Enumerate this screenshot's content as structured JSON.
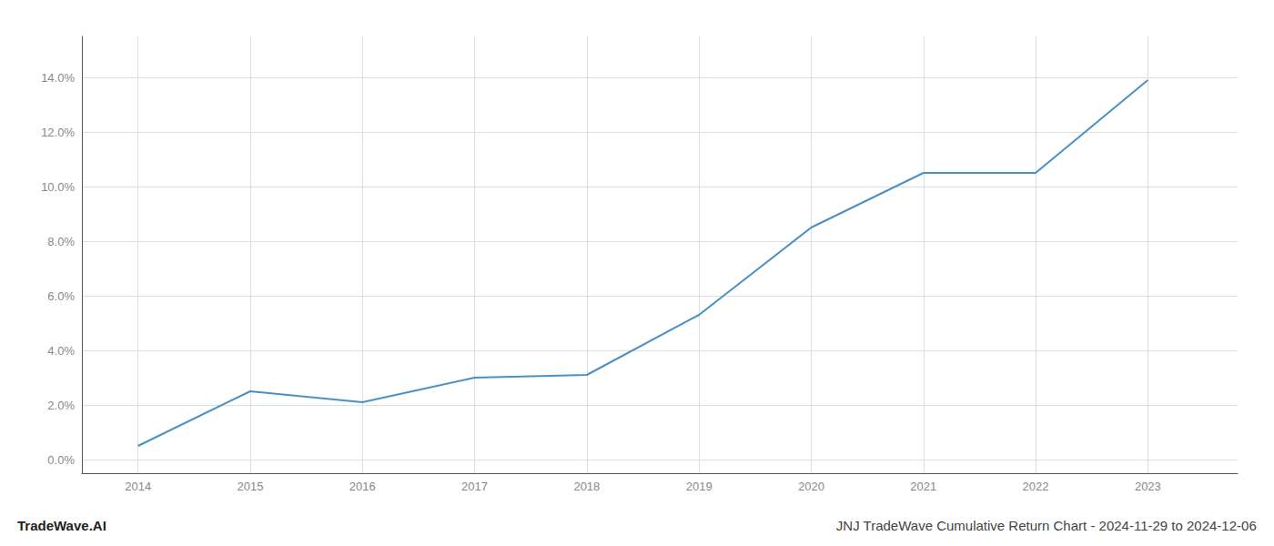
{
  "chart_data": {
    "type": "line",
    "title": "JNJ TradeWave Cumulative Return Chart - 2024-11-29 to 2024-12-06",
    "annotations": [
      "TradeWave.AI"
    ],
    "x": [
      2014,
      2015,
      2016,
      2017,
      2018,
      2019,
      2020,
      2021,
      2022,
      2023
    ],
    "values": [
      0.005,
      0.025,
      0.021,
      0.03,
      0.031,
      0.053,
      0.085,
      0.105,
      0.105,
      0.139
    ],
    "color": "#4a90c4",
    "xlim": [
      2013.5,
      2023.8
    ],
    "ylim": [
      -0.005,
      0.155
    ],
    "xticks": [
      2014,
      2015,
      2016,
      2017,
      2018,
      2019,
      2020,
      2021,
      2022,
      2023
    ],
    "yticks": [
      {
        "value": 0.0,
        "label": "0.0%"
      },
      {
        "value": 0.02,
        "label": "2.0%"
      },
      {
        "value": 0.04,
        "label": "4.0%"
      },
      {
        "value": 0.06,
        "label": "6.0%"
      },
      {
        "value": 0.08,
        "label": "8.0%"
      },
      {
        "value": 0.1,
        "label": "10.0%"
      },
      {
        "value": 0.12,
        "label": "12.0%"
      },
      {
        "value": 0.14,
        "label": "14.0%"
      }
    ],
    "grid": true
  }
}
